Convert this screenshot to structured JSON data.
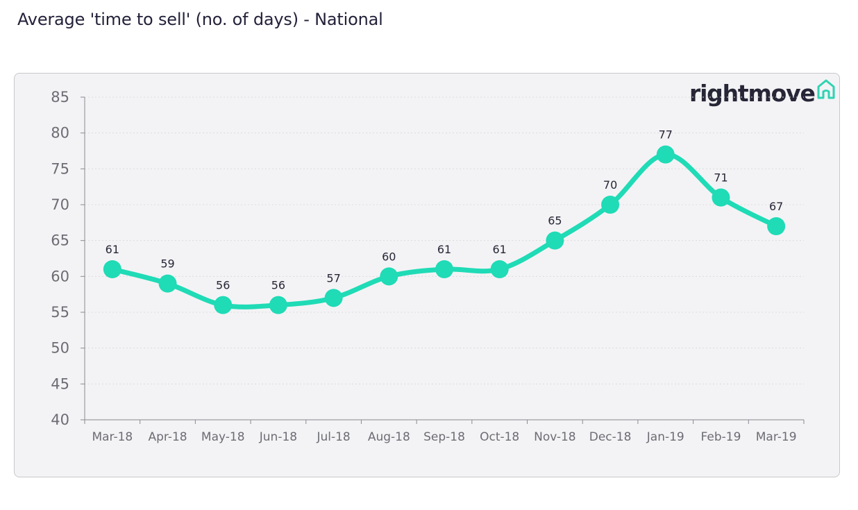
{
  "page": {
    "title": "Average 'time to sell' (no. of days) - National"
  },
  "brand": {
    "name": "rightmove",
    "icon": "house-outline-icon",
    "icon_color": "#2fd3b2"
  },
  "colors": {
    "series_line": "#1fdbb6",
    "marker": "#1fdbb6",
    "axis": "#8a8a90",
    "grid": "#dcdce0",
    "panel": "#f3f3f5"
  },
  "chart_data": {
    "type": "line",
    "title": "Average 'time to sell' (no. of days) - National",
    "xlabel": "",
    "ylabel": "",
    "categories": [
      "Mar-18",
      "Apr-18",
      "May-18",
      "Jun-18",
      "Jul-18",
      "Aug-18",
      "Sep-18",
      "Oct-18",
      "Nov-18",
      "Dec-18",
      "Jan-19",
      "Feb-19",
      "Mar-19"
    ],
    "series": [
      {
        "values": [
          61,
          59,
          56,
          56,
          57,
          60,
          61,
          61,
          65,
          70,
          77,
          71,
          67
        ]
      }
    ],
    "ylim": [
      40,
      85
    ],
    "yticks": [
      40,
      45,
      50,
      55,
      60,
      65,
      70,
      75,
      80,
      85
    ],
    "data_labels": true,
    "grid": "horizontal dotted",
    "legend": "none",
    "smooth": true
  }
}
